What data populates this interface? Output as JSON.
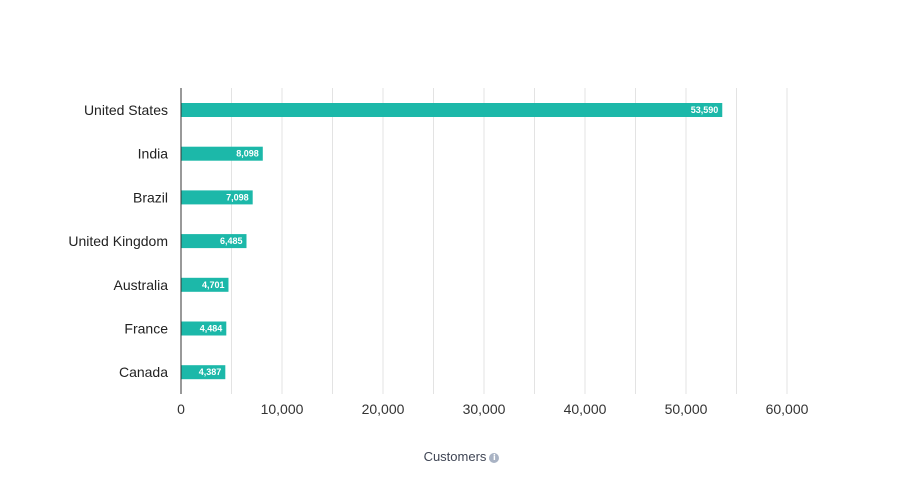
{
  "colors": {
    "bar": "#1cb8a9",
    "grid": "#e3e3e3",
    "axis": "#333333"
  },
  "icons": {
    "info": "info-icon"
  },
  "chart_data": {
    "type": "bar",
    "orientation": "horizontal",
    "categories": [
      "United States",
      "India",
      "Brazil",
      "United Kingdom",
      "Australia",
      "France",
      "Canada"
    ],
    "values": [
      53590,
      8098,
      7098,
      6485,
      4701,
      4484,
      4387
    ],
    "value_labels": [
      "53,590",
      "8,098",
      "7,098",
      "6,485",
      "4,701",
      "4,484",
      "4,387"
    ],
    "xlabel": "Customers",
    "ylabel": "",
    "title": "",
    "xlim": [
      0,
      60000
    ],
    "xticks": [
      0,
      10000,
      20000,
      30000,
      40000,
      50000,
      60000
    ],
    "xtick_labels": [
      "0",
      "10,000",
      "20,000",
      "30,000",
      "40,000",
      "50,000",
      "60,000"
    ],
    "grid": true,
    "legend": "none"
  }
}
